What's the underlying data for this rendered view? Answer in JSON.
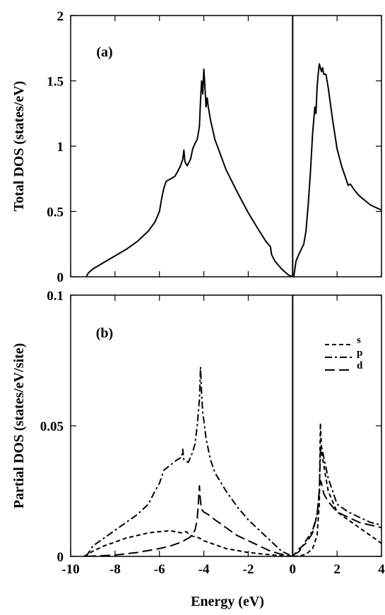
{
  "chart_data": [
    {
      "panel_label": "(a)",
      "type": "line",
      "ylabel": "Total DOS (states/eV)",
      "xlim": [
        -10,
        4
      ],
      "ylim": [
        0,
        2
      ],
      "x_ticks": [
        -10,
        -8,
        -6,
        -4,
        -2,
        0,
        2,
        4
      ],
      "x_tick_labels": [
        "",
        "",
        "",
        "",
        "",
        "",
        "",
        ""
      ],
      "y_ticks": [
        0,
        0.5,
        1,
        1.5,
        2
      ],
      "y_tick_labels": [
        "0",
        "0.5",
        "1",
        "1.5",
        "2"
      ],
      "vertical_line_at": 0,
      "series": [
        {
          "style": "solid",
          "points": [
            [
              -9.3,
              0.0
            ],
            [
              -9.2,
              0.03
            ],
            [
              -9.0,
              0.06
            ],
            [
              -8.5,
              0.11
            ],
            [
              -8.0,
              0.16
            ],
            [
              -7.5,
              0.21
            ],
            [
              -7.0,
              0.27
            ],
            [
              -6.5,
              0.35
            ],
            [
              -6.2,
              0.42
            ],
            [
              -6.0,
              0.5
            ],
            [
              -5.9,
              0.6
            ],
            [
              -5.8,
              0.68
            ],
            [
              -5.7,
              0.73
            ],
            [
              -5.5,
              0.75
            ],
            [
              -5.3,
              0.77
            ],
            [
              -5.2,
              0.8
            ],
            [
              -5.05,
              0.85
            ],
            [
              -4.95,
              0.9
            ],
            [
              -4.9,
              0.97
            ],
            [
              -4.85,
              0.88
            ],
            [
              -4.75,
              0.85
            ],
            [
              -4.6,
              0.9
            ],
            [
              -4.5,
              0.98
            ],
            [
              -4.4,
              1.02
            ],
            [
              -4.3,
              1.05
            ],
            [
              -4.2,
              1.15
            ],
            [
              -4.15,
              1.35
            ],
            [
              -4.1,
              1.5
            ],
            [
              -4.05,
              1.4
            ],
            [
              -4.0,
              1.59
            ],
            [
              -3.95,
              1.45
            ],
            [
              -3.9,
              1.3
            ],
            [
              -3.85,
              1.37
            ],
            [
              -3.8,
              1.3
            ],
            [
              -3.7,
              1.2
            ],
            [
              -3.5,
              1.05
            ],
            [
              -3.0,
              0.82
            ],
            [
              -2.5,
              0.65
            ],
            [
              -2.0,
              0.49
            ],
            [
              -1.5,
              0.35
            ],
            [
              -1.2,
              0.27
            ],
            [
              -1.0,
              0.23
            ],
            [
              -0.95,
              0.17
            ],
            [
              -0.8,
              0.12
            ],
            [
              -0.5,
              0.06
            ],
            [
              -0.2,
              0.015
            ],
            [
              0.0,
              0.0
            ]
          ]
        },
        {
          "style": "solid",
          "points": [
            [
              0.05,
              0.0
            ],
            [
              0.15,
              0.12
            ],
            [
              0.3,
              0.18
            ],
            [
              0.5,
              0.25
            ],
            [
              0.6,
              0.35
            ],
            [
              0.7,
              0.55
            ],
            [
              0.8,
              0.8
            ],
            [
              0.9,
              1.1
            ],
            [
              0.95,
              1.2
            ],
            [
              1.0,
              1.3
            ],
            [
              1.05,
              1.25
            ],
            [
              1.1,
              1.45
            ],
            [
              1.15,
              1.55
            ],
            [
              1.2,
              1.63
            ],
            [
              1.25,
              1.6
            ],
            [
              1.3,
              1.57
            ],
            [
              1.35,
              1.6
            ],
            [
              1.4,
              1.55
            ],
            [
              1.5,
              1.55
            ],
            [
              1.6,
              1.45
            ],
            [
              1.8,
              1.2
            ],
            [
              2.0,
              0.98
            ],
            [
              2.2,
              0.85
            ],
            [
              2.4,
              0.75
            ],
            [
              2.5,
              0.7
            ],
            [
              2.6,
              0.71
            ],
            [
              2.8,
              0.66
            ],
            [
              3.0,
              0.62
            ],
            [
              3.5,
              0.55
            ],
            [
              4.0,
              0.51
            ]
          ]
        }
      ]
    },
    {
      "panel_label": "(b)",
      "type": "line",
      "ylabel": "Partial DOS (states/eV/site)",
      "xlabel": "Energy (eV)",
      "xlim": [
        -10,
        4
      ],
      "ylim": [
        0,
        0.1
      ],
      "x_ticks": [
        -10,
        -8,
        -6,
        -4,
        -2,
        0,
        2,
        4
      ],
      "x_tick_labels": [
        "-10",
        "-8",
        "-6",
        "-4",
        "-2",
        "0",
        "2",
        "4"
      ],
      "y_ticks": [
        0,
        0.05,
        0.1
      ],
      "y_tick_labels": [
        "0",
        "0.05",
        "0.1"
      ],
      "vertical_line_at": 0,
      "legend_position": "top-right",
      "series": [
        {
          "name": "s",
          "style": "short-dash",
          "points": [
            [
              -9.4,
              0.0
            ],
            [
              -9.0,
              0.002
            ],
            [
              -8.5,
              0.004
            ],
            [
              -8.0,
              0.0055
            ],
            [
              -7.5,
              0.007
            ],
            [
              -7.0,
              0.008
            ],
            [
              -6.5,
              0.009
            ],
            [
              -6.0,
              0.0095
            ],
            [
              -5.5,
              0.0098
            ],
            [
              -5.0,
              0.009
            ],
            [
              -4.8,
              0.0095
            ],
            [
              -4.6,
              0.008
            ],
            [
              -4.4,
              0.0075
            ],
            [
              -4.2,
              0.007
            ],
            [
              -4.0,
              0.006
            ],
            [
              -3.5,
              0.0045
            ],
            [
              -3.0,
              0.003
            ],
            [
              -2.0,
              0.0015
            ],
            [
              -1.0,
              0.0006
            ],
            [
              -0.3,
              0.0002
            ],
            [
              0.0,
              0.0
            ],
            [
              0.3,
              0.0002
            ],
            [
              0.6,
              0.0008
            ],
            [
              0.9,
              0.003
            ],
            [
              1.1,
              0.008
            ],
            [
              1.2,
              0.02
            ],
            [
              1.25,
              0.051
            ],
            [
              1.3,
              0.04
            ],
            [
              1.4,
              0.035
            ],
            [
              1.6,
              0.025
            ],
            [
              2.0,
              0.017
            ],
            [
              2.5,
              0.014
            ],
            [
              3.0,
              0.011
            ],
            [
              3.5,
              0.008
            ],
            [
              4.0,
              0.005
            ]
          ]
        },
        {
          "name": "p",
          "style": "dash-dot",
          "points": [
            [
              -9.3,
              0.0
            ],
            [
              -9.0,
              0.004
            ],
            [
              -8.5,
              0.007
            ],
            [
              -8.0,
              0.01
            ],
            [
              -7.5,
              0.013
            ],
            [
              -7.0,
              0.016
            ],
            [
              -6.5,
              0.02
            ],
            [
              -6.2,
              0.025
            ],
            [
              -6.0,
              0.028
            ],
            [
              -5.8,
              0.033
            ],
            [
              -5.5,
              0.035
            ],
            [
              -5.2,
              0.037
            ],
            [
              -5.0,
              0.038
            ],
            [
              -4.95,
              0.041
            ],
            [
              -4.9,
              0.037
            ],
            [
              -4.7,
              0.036
            ],
            [
              -4.5,
              0.04
            ],
            [
              -4.4,
              0.043
            ],
            [
              -4.3,
              0.05
            ],
            [
              -4.2,
              0.06
            ],
            [
              -4.15,
              0.0725
            ],
            [
              -4.1,
              0.062
            ],
            [
              -4.05,
              0.055
            ],
            [
              -4.0,
              0.052
            ],
            [
              -3.9,
              0.045
            ],
            [
              -3.7,
              0.037
            ],
            [
              -3.5,
              0.032
            ],
            [
              -3.0,
              0.025
            ],
            [
              -2.5,
              0.019
            ],
            [
              -2.0,
              0.014
            ],
            [
              -1.5,
              0.01
            ],
            [
              -1.0,
              0.006
            ],
            [
              -0.5,
              0.002
            ],
            [
              0.0,
              0.0
            ],
            [
              0.3,
              0.002
            ],
            [
              0.6,
              0.006
            ],
            [
              0.9,
              0.01
            ],
            [
              1.1,
              0.016
            ],
            [
              1.2,
              0.025
            ],
            [
              1.25,
              0.04
            ],
            [
              1.3,
              0.042
            ],
            [
              1.4,
              0.038
            ],
            [
              1.6,
              0.03
            ],
            [
              1.8,
              0.025
            ],
            [
              2.0,
              0.02
            ],
            [
              2.5,
              0.017
            ],
            [
              3.0,
              0.015
            ],
            [
              3.5,
              0.013
            ],
            [
              4.0,
              0.012
            ]
          ]
        },
        {
          "name": "d",
          "style": "long-dash",
          "points": [
            [
              -9.3,
              0.0
            ],
            [
              -8.0,
              0.0005
            ],
            [
              -7.0,
              0.0015
            ],
            [
              -6.0,
              0.003
            ],
            [
              -5.5,
              0.004
            ],
            [
              -5.0,
              0.0055
            ],
            [
              -4.6,
              0.0075
            ],
            [
              -4.4,
              0.01
            ],
            [
              -4.3,
              0.014
            ],
            [
              -4.25,
              0.02
            ],
            [
              -4.2,
              0.027
            ],
            [
              -4.15,
              0.021
            ],
            [
              -4.1,
              0.018
            ],
            [
              -4.0,
              0.017
            ],
            [
              -3.8,
              0.016
            ],
            [
              -3.5,
              0.014
            ],
            [
              -3.0,
              0.011
            ],
            [
              -2.5,
              0.008
            ],
            [
              -2.0,
              0.006
            ],
            [
              -1.5,
              0.004
            ],
            [
              -1.0,
              0.002
            ],
            [
              -0.5,
              0.0008
            ],
            [
              0.0,
              0.0
            ],
            [
              0.3,
              0.003
            ],
            [
              0.6,
              0.005
            ],
            [
              0.9,
              0.009
            ],
            [
              1.1,
              0.016
            ],
            [
              1.2,
              0.025
            ],
            [
              1.25,
              0.029
            ],
            [
              1.3,
              0.028
            ],
            [
              1.4,
              0.024
            ],
            [
              1.6,
              0.021
            ],
            [
              1.8,
              0.019
            ],
            [
              2.0,
              0.017
            ],
            [
              2.5,
              0.015
            ],
            [
              3.0,
              0.013
            ],
            [
              3.5,
              0.012
            ],
            [
              4.0,
              0.011
            ]
          ]
        }
      ]
    }
  ]
}
